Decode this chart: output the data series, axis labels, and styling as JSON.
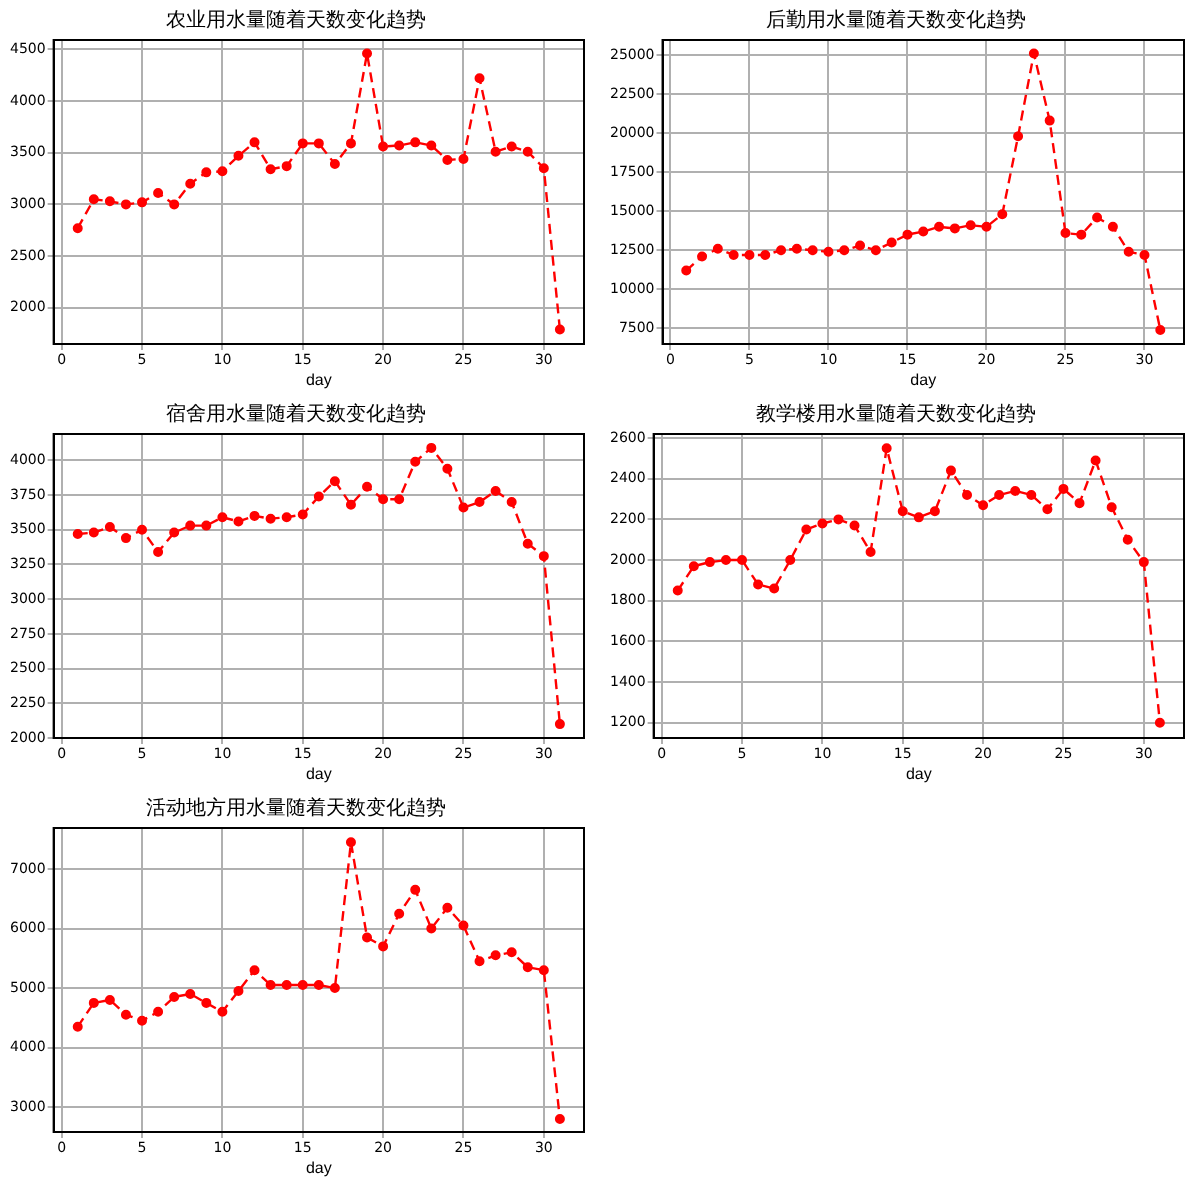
{
  "chart_data": [
    {
      "type": "line",
      "title": "农业用水量随着天数变化趋势",
      "xlabel": "day",
      "x": [
        1,
        2,
        3,
        4,
        5,
        6,
        7,
        8,
        9,
        10,
        11,
        12,
        13,
        14,
        15,
        16,
        17,
        18,
        19,
        20,
        21,
        22,
        23,
        24,
        25,
        26,
        27,
        28,
        29,
        30,
        31
      ],
      "series": [
        {
          "color": "#ff0000",
          "values": [
            2770,
            3050,
            3030,
            3000,
            3020,
            3110,
            3000,
            3200,
            3310,
            3320,
            3470,
            3600,
            3340,
            3370,
            3590,
            3590,
            3390,
            3590,
            4460,
            3560,
            3570,
            3600,
            3570,
            3430,
            3440,
            4220,
            3510,
            3560,
            3510,
            3350,
            1790
          ]
        }
      ],
      "xlim": [
        -0.5,
        32.5
      ],
      "xticks": [
        0,
        5,
        10,
        15,
        20,
        25,
        30
      ],
      "ylim": [
        1650,
        4590
      ],
      "yticks": [
        2000,
        2500,
        3000,
        3500,
        4000,
        4500
      ],
      "grid": true,
      "marker": "circle",
      "line_style": "dashed"
    },
    {
      "type": "line",
      "title": "后勤用水量随着天数变化趋势",
      "xlabel": "day",
      "x": [
        1,
        2,
        3,
        4,
        5,
        6,
        7,
        8,
        9,
        10,
        11,
        12,
        13,
        14,
        15,
        16,
        17,
        18,
        19,
        20,
        21,
        22,
        23,
        24,
        25,
        26,
        27,
        28,
        29,
        30,
        31
      ],
      "series": [
        {
          "color": "#ff0000",
          "values": [
            11200,
            12100,
            12600,
            12200,
            12200,
            12200,
            12500,
            12600,
            12500,
            12400,
            12500,
            12800,
            12500,
            13000,
            13500,
            13700,
            14000,
            13900,
            14100,
            14000,
            14800,
            19800,
            25100,
            20800,
            13600,
            13500,
            14600,
            14000,
            12400,
            12200,
            7400
          ]
        }
      ],
      "xlim": [
        -0.5,
        32.5
      ],
      "xticks": [
        0,
        5,
        10,
        15,
        20,
        25,
        30
      ],
      "ylim": [
        6500,
        25960
      ],
      "yticks": [
        7500,
        10000,
        12500,
        15000,
        17500,
        20000,
        22500,
        25000
      ],
      "grid": true,
      "marker": "circle",
      "line_style": "dashed"
    },
    {
      "type": "line",
      "title": "宿舍用水量随着天数变化趋势",
      "xlabel": "day",
      "x": [
        1,
        2,
        3,
        4,
        5,
        6,
        7,
        8,
        9,
        10,
        11,
        12,
        13,
        14,
        15,
        16,
        17,
        18,
        19,
        20,
        21,
        22,
        23,
        24,
        25,
        26,
        27,
        28,
        29,
        30,
        31
      ],
      "series": [
        {
          "color": "#ff0000",
          "values": [
            3470,
            3480,
            3520,
            3440,
            3500,
            3340,
            3480,
            3530,
            3530,
            3590,
            3560,
            3600,
            3580,
            3590,
            3610,
            3740,
            3850,
            3680,
            3810,
            3720,
            3720,
            3990,
            4090,
            3940,
            3660,
            3700,
            3780,
            3700,
            3400,
            3310,
            2100
          ]
        }
      ],
      "xlim": [
        -0.5,
        32.5
      ],
      "xticks": [
        0,
        5,
        10,
        15,
        20,
        25,
        30
      ],
      "ylim": [
        2000,
        4190
      ],
      "yticks": [
        2000,
        2250,
        2500,
        2750,
        3000,
        3250,
        3500,
        3750,
        4000
      ],
      "grid": true,
      "marker": "circle",
      "line_style": "dashed"
    },
    {
      "type": "line",
      "title": "教学楼用水量随着天数变化趋势",
      "xlabel": "day",
      "x": [
        1,
        2,
        3,
        4,
        5,
        6,
        7,
        8,
        9,
        10,
        11,
        12,
        13,
        14,
        15,
        16,
        17,
        18,
        19,
        20,
        21,
        22,
        23,
        24,
        25,
        26,
        27,
        28,
        29,
        30,
        31
      ],
      "series": [
        {
          "color": "#ff0000",
          "values": [
            1850,
            1970,
            1990,
            2000,
            2000,
            1880,
            1860,
            2000,
            2150,
            2180,
            2200,
            2170,
            2040,
            2550,
            2240,
            2210,
            2240,
            2440,
            2320,
            2270,
            2320,
            2340,
            2320,
            2250,
            2350,
            2280,
            2490,
            2260,
            2100,
            1990,
            1200
          ]
        }
      ],
      "xlim": [
        -0.5,
        32.5
      ],
      "xticks": [
        0,
        5,
        10,
        15,
        20,
        25,
        30
      ],
      "ylim": [
        1125,
        2620
      ],
      "yticks": [
        1200,
        1400,
        1600,
        1800,
        2000,
        2200,
        2400,
        2600
      ],
      "grid": true,
      "marker": "circle",
      "line_style": "dashed"
    },
    {
      "type": "line",
      "title": "活动地方用水量随着天数变化趋势",
      "xlabel": "day",
      "x": [
        1,
        2,
        3,
        4,
        5,
        6,
        7,
        8,
        9,
        10,
        11,
        12,
        13,
        14,
        15,
        16,
        17,
        18,
        19,
        20,
        21,
        22,
        23,
        24,
        25,
        26,
        27,
        28,
        29,
        30,
        31
      ],
      "series": [
        {
          "color": "#ff0000",
          "values": [
            4350,
            4750,
            4800,
            4550,
            4450,
            4600,
            4850,
            4900,
            4750,
            4600,
            4950,
            5300,
            5050,
            5050,
            5050,
            5050,
            5000,
            7450,
            5850,
            5700,
            6250,
            6650,
            6000,
            6350,
            6050,
            5450,
            5550,
            5600,
            5350,
            5300,
            2800
          ]
        }
      ],
      "xlim": [
        -0.5,
        32.5
      ],
      "xticks": [
        0,
        5,
        10,
        15,
        20,
        25,
        30
      ],
      "ylim": [
        2580,
        7690
      ],
      "yticks": [
        3000,
        4000,
        5000,
        6000,
        7000
      ],
      "grid": true,
      "marker": "circle",
      "line_style": "dashed"
    }
  ]
}
